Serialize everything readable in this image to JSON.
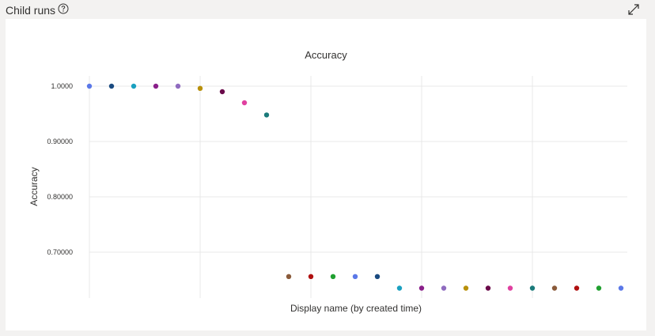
{
  "panel": {
    "title": "Child runs",
    "help_icon": "question-circle-icon",
    "expand_icon": "expand-diagonal-icon"
  },
  "chart_data": {
    "type": "scatter",
    "title": "Accuracy",
    "xlabel": "Display name (by created time)",
    "ylabel": "Accuracy",
    "ylim": [
      0.635,
      1.0
    ],
    "yticks": [
      1.0,
      0.9,
      0.8,
      0.7
    ],
    "ytick_labels": [
      "1.0000",
      "0.90000",
      "0.80000",
      "0.70000"
    ],
    "grid": true,
    "points": [
      {
        "index": 0,
        "value": 1.0,
        "color": "#5b78e8"
      },
      {
        "index": 1,
        "value": 1.0,
        "color": "#1a4a80"
      },
      {
        "index": 2,
        "value": 1.0,
        "color": "#1aa0c0"
      },
      {
        "index": 3,
        "value": 1.0,
        "color": "#8a1f8a"
      },
      {
        "index": 4,
        "value": 1.0,
        "color": "#8f6bbf"
      },
      {
        "index": 5,
        "value": 0.996,
        "color": "#b8900a"
      },
      {
        "index": 6,
        "value": 0.99,
        "color": "#6a0a4a"
      },
      {
        "index": 7,
        "value": 0.97,
        "color": "#e040a0"
      },
      {
        "index": 8,
        "value": 0.948,
        "color": "#1a7a7a"
      },
      {
        "index": 9,
        "value": 0.656,
        "color": "#8a5a3a"
      },
      {
        "index": 10,
        "value": 0.656,
        "color": "#b01010"
      },
      {
        "index": 11,
        "value": 0.656,
        "color": "#20a030"
      },
      {
        "index": 12,
        "value": 0.656,
        "color": "#5b78e8"
      },
      {
        "index": 13,
        "value": 0.656,
        "color": "#1a4a80"
      },
      {
        "index": 14,
        "value": 0.635,
        "color": "#1aa0c0"
      },
      {
        "index": 15,
        "value": 0.635,
        "color": "#8a1f8a"
      },
      {
        "index": 16,
        "value": 0.635,
        "color": "#8f6bbf"
      },
      {
        "index": 17,
        "value": 0.635,
        "color": "#b8900a"
      },
      {
        "index": 18,
        "value": 0.635,
        "color": "#6a0a4a"
      },
      {
        "index": 19,
        "value": 0.635,
        "color": "#e040a0"
      },
      {
        "index": 20,
        "value": 0.635,
        "color": "#1a7a7a"
      },
      {
        "index": 21,
        "value": 0.635,
        "color": "#8a5a3a"
      },
      {
        "index": 22,
        "value": 0.635,
        "color": "#b01010"
      },
      {
        "index": 23,
        "value": 0.635,
        "color": "#20a030"
      },
      {
        "index": 24,
        "value": 0.635,
        "color": "#5b78e8"
      }
    ]
  }
}
